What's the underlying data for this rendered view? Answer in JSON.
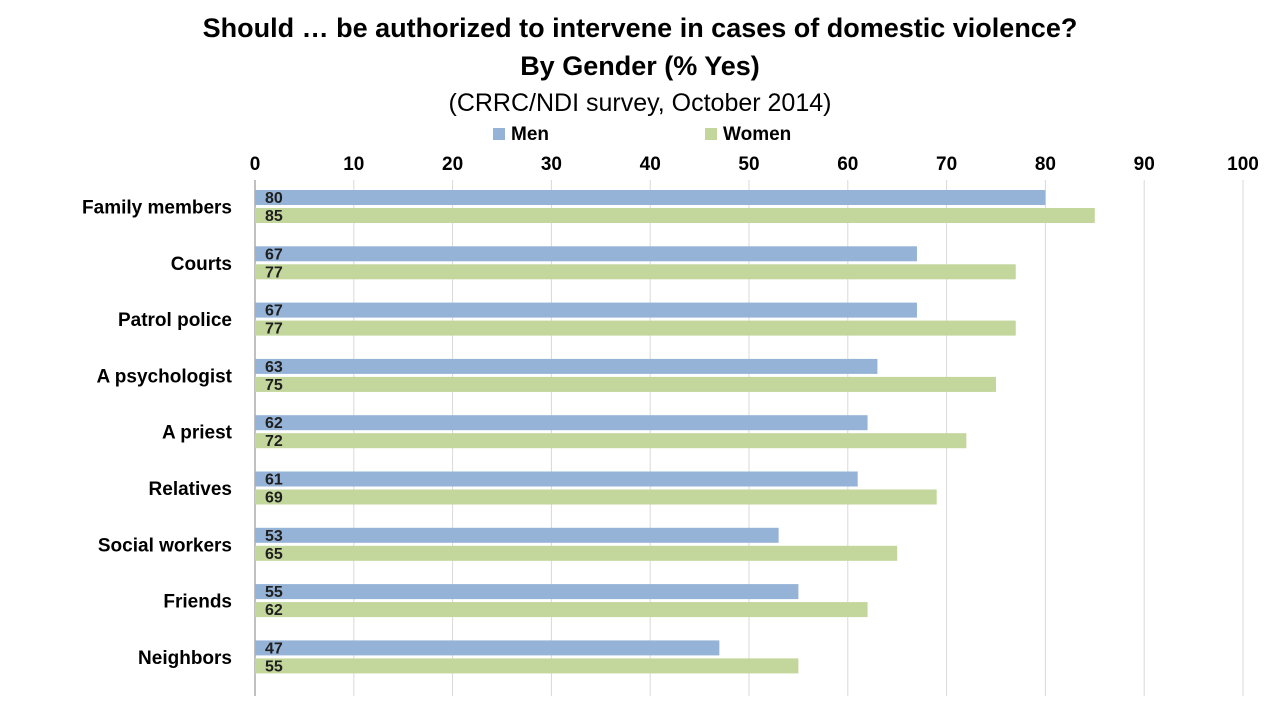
{
  "chart_data": {
    "type": "bar",
    "orientation": "horizontal",
    "title": "Should … be authorized to intervene in cases of domestic violence?",
    "subtitle": "By Gender (% Yes)",
    "source_note": "(CRRC/NDI survey, October 2014)",
    "categories": [
      "Family members",
      "Courts",
      "Patrol police",
      "A psychologist",
      "A priest",
      "Relatives",
      "Social workers",
      "Friends",
      "Neighbors"
    ],
    "series": [
      {
        "name": "Men",
        "color": "#95B3D7",
        "values": [
          80,
          67,
          67,
          63,
          62,
          61,
          53,
          55,
          47
        ]
      },
      {
        "name": "Women",
        "color": "#C3D69B",
        "values": [
          85,
          77,
          77,
          75,
          72,
          69,
          65,
          62,
          55
        ]
      }
    ],
    "xlim": [
      0,
      100
    ],
    "x_ticks": [
      0,
      10,
      20,
      30,
      40,
      50,
      60,
      70,
      80,
      90,
      100
    ],
    "x_axis_position": "top",
    "grid": true,
    "legend_position": "top",
    "data_labels": true
  }
}
